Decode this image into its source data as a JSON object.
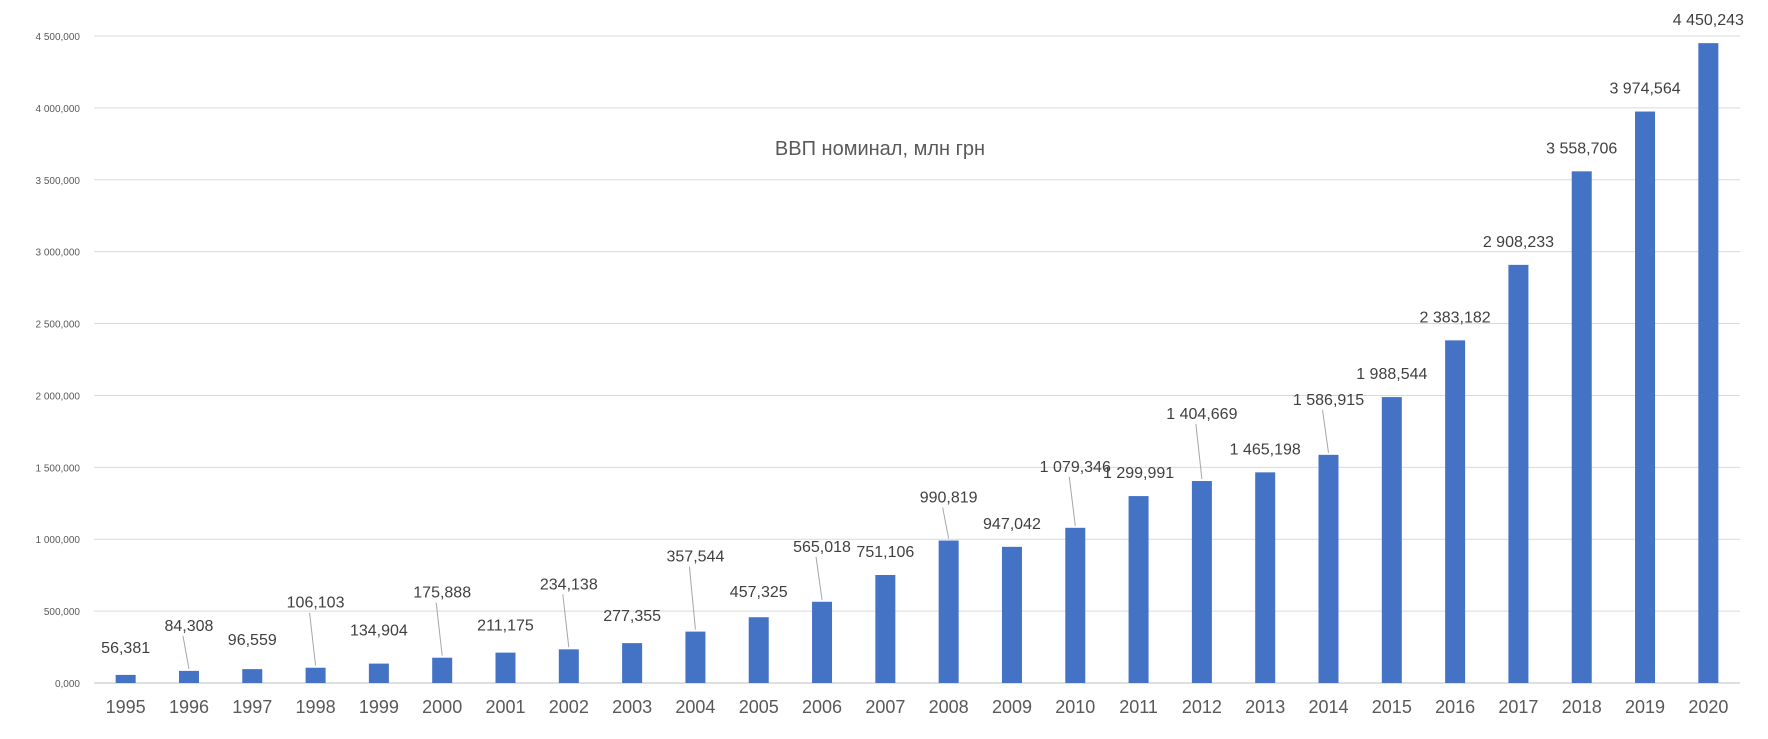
{
  "chart_data": {
    "type": "bar",
    "title": "ВВП номинал, млн грн",
    "xlabel": "",
    "ylabel": "",
    "ylim": [
      0,
      4500000
    ],
    "yticks": [
      0,
      500000,
      1000000,
      1500000,
      2000000,
      2500000,
      3000000,
      3500000,
      4000000,
      4500000
    ],
    "ytick_labels": [
      "0,000",
      "500,000",
      "1 000,000",
      "1 500,000",
      "2 000,000",
      "2 500,000",
      "3 000,000",
      "3 500,000",
      "4 000,000",
      "4 500,000"
    ],
    "grid": true,
    "legend": "none",
    "bar_color": "#4472c4",
    "categories": [
      "1995",
      "1996",
      "1997",
      "1998",
      "1999",
      "2000",
      "2001",
      "2002",
      "2003",
      "2004",
      "2005",
      "2006",
      "2007",
      "2008",
      "2009",
      "2010",
      "2011",
      "2012",
      "2013",
      "2014",
      "2015",
      "2016",
      "2017",
      "2018",
      "2019",
      "2020"
    ],
    "values": [
      56381,
      84308,
      96559,
      106103,
      134904,
      175888,
      211175,
      234138,
      277355,
      357544,
      457325,
      565018,
      751106,
      990819,
      947042,
      1079346,
      1299991,
      1404669,
      1465198,
      1586915,
      1988544,
      2383182,
      2908233,
      3558706,
      3974564,
      4450243
    ],
    "data_labels": [
      "56,381",
      "84,308",
      "96,559",
      "106,103",
      "134,904",
      "175,888",
      "211,175",
      "234,138",
      "277,355",
      "357,544",
      "457,325",
      "565,018",
      "751,106",
      "990,819",
      "947,042",
      "1 079,346",
      "1 299,991",
      "1 404,669",
      "1 465,198",
      "1 586,915",
      "1 988,544",
      "2 383,182",
      "2 908,233",
      "3 558,706",
      "3 974,564",
      "4 450,243"
    ]
  }
}
